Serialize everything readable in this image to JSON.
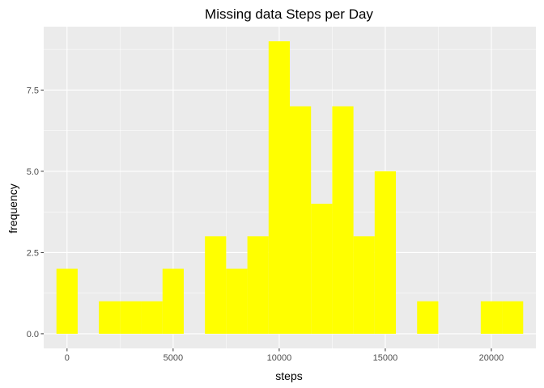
{
  "chart_data": {
    "type": "bar",
    "title": "Missing data Steps per Day",
    "xlabel": "steps",
    "ylabel": "frequency",
    "xlim": [
      -1100,
      22100
    ],
    "ylim": [
      -0.45,
      9.45
    ],
    "x_ticks": [
      0,
      5000,
      10000,
      15000,
      20000
    ],
    "x_tick_labels": [
      "0",
      "5000",
      "10000",
      "15000",
      "20000"
    ],
    "y_ticks": [
      0,
      2.5,
      5,
      7.5
    ],
    "y_tick_labels": [
      "0.0",
      "2.5",
      "5.0",
      "7.5"
    ],
    "bin_width": 1000,
    "bins": [
      {
        "center": 0,
        "count": 2
      },
      {
        "center": 1000,
        "count": 0
      },
      {
        "center": 2000,
        "count": 1
      },
      {
        "center": 3000,
        "count": 1
      },
      {
        "center": 4000,
        "count": 1
      },
      {
        "center": 5000,
        "count": 2
      },
      {
        "center": 6000,
        "count": 0
      },
      {
        "center": 7000,
        "count": 3
      },
      {
        "center": 8000,
        "count": 2
      },
      {
        "center": 9000,
        "count": 3
      },
      {
        "center": 10000,
        "count": 9
      },
      {
        "center": 11000,
        "count": 7
      },
      {
        "center": 12000,
        "count": 4
      },
      {
        "center": 13000,
        "count": 7
      },
      {
        "center": 14000,
        "count": 3
      },
      {
        "center": 15000,
        "count": 5
      },
      {
        "center": 16000,
        "count": 0
      },
      {
        "center": 17000,
        "count": 1
      },
      {
        "center": 18000,
        "count": 0
      },
      {
        "center": 19000,
        "count": 0
      },
      {
        "center": 20000,
        "count": 1
      },
      {
        "center": 21000,
        "count": 1
      }
    ],
    "bar_color": "#FFFF00",
    "panel_color": "#EBEBEB",
    "grid": true,
    "legend": "none"
  }
}
